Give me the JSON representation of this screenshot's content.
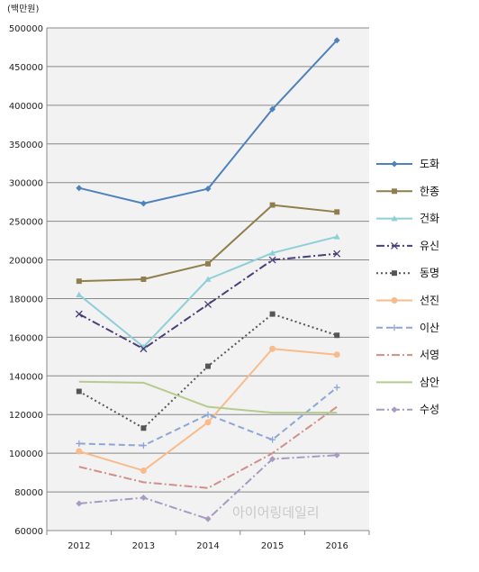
{
  "chart_data": {
    "type": "line",
    "unit_label": "(백만원)",
    "x": [
      "2012",
      "2013",
      "2014",
      "2015",
      "2016"
    ],
    "y_ticks": [
      "60000",
      "80000",
      "100000",
      "120000",
      "140000",
      "160000",
      "180000",
      "200000",
      "250000",
      "300000",
      "350000",
      "400000",
      "450000",
      "500000"
    ],
    "grid": true,
    "legend_position": "right",
    "series": [
      {
        "name": "도화",
        "color": "#4f81bd",
        "dash": "solid",
        "marker": "diamond",
        "values": [
          293000,
          273000,
          292000,
          395000,
          484000
        ]
      },
      {
        "name": "한종",
        "color": "#8f7f4c",
        "dash": "solid",
        "marker": "square",
        "values": [
          189000,
          190000,
          198000,
          271000,
          262000
        ]
      },
      {
        "name": "건화",
        "color": "#8ecfd8",
        "dash": "solid",
        "marker": "triangle",
        "values": [
          182000,
          155000,
          190000,
          209000,
          230000
        ]
      },
      {
        "name": "유신",
        "color": "#4c3f78",
        "dash": "dashdot",
        "marker": "x",
        "values": [
          172000,
          154000,
          177000,
          200000,
          208000
        ]
      },
      {
        "name": "동명",
        "color": "#555555",
        "dash": "dot",
        "marker": "square",
        "values": [
          132000,
          113000,
          145000,
          172000,
          161000
        ]
      },
      {
        "name": "선진",
        "color": "#f8bc8c",
        "dash": "solid",
        "marker": "circle",
        "values": [
          101000,
          91000,
          116000,
          154000,
          151000
        ]
      },
      {
        "name": "이산",
        "color": "#8ea6d4",
        "dash": "dash",
        "marker": "plus",
        "values": [
          105000,
          104000,
          120000,
          107000,
          134000
        ]
      },
      {
        "name": "서영",
        "color": "#d08f8b",
        "dash": "dashdot",
        "marker": "none",
        "values": [
          93000,
          85000,
          82000,
          100000,
          124000
        ]
      },
      {
        "name": "삼안",
        "color": "#b5cb8f",
        "dash": "solid",
        "marker": "none",
        "values": [
          137000,
          136500,
          124000,
          121000,
          121000
        ]
      },
      {
        "name": "수성",
        "color": "#a89bc0",
        "dash": "dashdot",
        "marker": "diamond",
        "values": [
          74000,
          77000,
          66000,
          97000,
          99000
        ]
      }
    ]
  }
}
